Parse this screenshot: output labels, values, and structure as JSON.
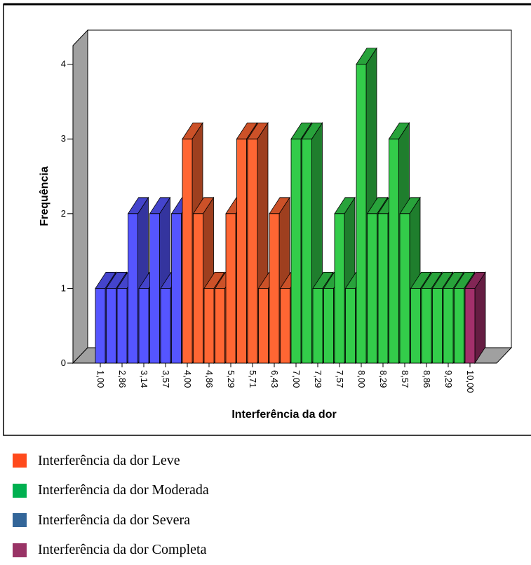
{
  "chart_data": {
    "type": "bar3d",
    "x_label": "Interferência da dor",
    "y_label": "Frequência",
    "categories": [
      "1,00",
      null,
      "2,86",
      null,
      "3,14",
      null,
      "3,57",
      null,
      "4,00",
      null,
      "4,86",
      null,
      "5,29",
      null,
      "5,71",
      null,
      "6,43",
      null,
      "7,00",
      null,
      "7,29",
      null,
      "7,57",
      null,
      "8,00",
      null,
      "8,29",
      null,
      "8,57",
      null,
      "8,86",
      null,
      "9,29",
      null,
      "10,00"
    ],
    "series": [
      {
        "name": "Interferência da dor Leve",
        "color": "#ff6633",
        "legend_color": "#ff4a1c",
        "values": [
          null,
          null,
          null,
          null,
          null,
          null,
          null,
          null,
          3,
          2,
          1,
          1,
          2,
          3,
          3,
          1,
          2,
          1,
          null,
          null,
          null,
          null,
          null,
          null,
          null,
          null,
          null,
          null,
          null,
          null,
          null,
          null,
          null,
          null,
          null
        ]
      },
      {
        "name": "Interferência da dor Moderada",
        "color": "#33cc4a",
        "legend_color": "#00b050",
        "values": [
          null,
          null,
          null,
          null,
          null,
          null,
          null,
          null,
          null,
          null,
          null,
          null,
          null,
          null,
          null,
          null,
          null,
          null,
          3,
          3,
          1,
          1,
          2,
          1,
          4,
          2,
          2,
          3,
          2,
          1,
          1,
          1,
          1,
          1,
          null
        ]
      },
      {
        "name": "Interferência da dor Severa",
        "color": "#5555ff",
        "legend_color": "#336699",
        "values": [
          1,
          1,
          1,
          2,
          1,
          2,
          1,
          2,
          null,
          null,
          null,
          null,
          null,
          null,
          null,
          null,
          null,
          null,
          null,
          null,
          null,
          null,
          null,
          null,
          null,
          null,
          null,
          null,
          null,
          null,
          null,
          null,
          null,
          null,
          null
        ]
      },
      {
        "name": "Interferência da dor Completa",
        "color": "#a3306b",
        "legend_color": "#993366",
        "values": [
          null,
          null,
          null,
          null,
          null,
          null,
          null,
          null,
          null,
          null,
          null,
          null,
          null,
          null,
          null,
          null,
          null,
          null,
          null,
          null,
          null,
          null,
          null,
          null,
          null,
          null,
          null,
          null,
          null,
          null,
          null,
          null,
          null,
          null,
          1
        ]
      }
    ],
    "ylim": [
      0,
      4.25
    ],
    "yticks": [
      0,
      1,
      2,
      3,
      4
    ]
  }
}
